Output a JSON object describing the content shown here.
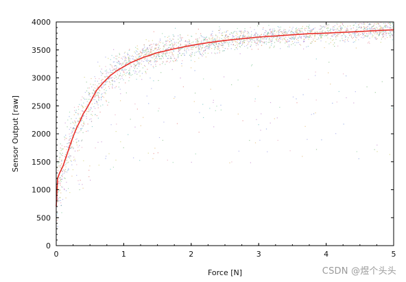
{
  "chart_data": {
    "type": "scatter",
    "title": "",
    "xlabel": "Force [N]",
    "ylabel": "Sensor Output [raw]",
    "xlim": [
      0,
      5
    ],
    "ylim": [
      0,
      4000
    ],
    "xticks": [
      "0",
      "1",
      "2",
      "3",
      "4",
      "5"
    ],
    "yticks": [
      "0",
      "500",
      "1000",
      "1500",
      "2000",
      "2500",
      "3000",
      "3500",
      "4000"
    ],
    "grid": false,
    "scatter_colors": [
      "#e05a5a",
      "#5aa85a",
      "#5a7ad8",
      "#d8a040",
      "#b060c0",
      "#40b0b0",
      "#c0c040",
      "#e080a0",
      "#8080e0",
      "#60c080"
    ],
    "series": [
      {
        "kind": "line",
        "color": "#e8302a",
        "x": [
          0.0,
          0.02,
          0.05,
          0.1,
          0.15,
          0.2,
          0.25,
          0.3,
          0.35,
          0.4,
          0.45,
          0.5,
          0.6,
          0.7,
          0.8,
          0.9,
          1.0,
          1.1,
          1.2,
          1.3,
          1.4,
          1.5,
          1.75,
          2.0,
          2.25,
          2.5,
          2.75,
          3.0,
          3.25,
          3.5,
          3.75,
          4.0,
          4.25,
          4.5,
          4.75,
          5.0
        ],
        "y": [
          700,
          1200,
          1300,
          1420,
          1600,
          1780,
          1950,
          2100,
          2220,
          2360,
          2450,
          2560,
          2780,
          2920,
          3040,
          3130,
          3200,
          3270,
          3320,
          3370,
          3410,
          3450,
          3520,
          3580,
          3630,
          3670,
          3700,
          3730,
          3750,
          3770,
          3790,
          3800,
          3815,
          3830,
          3845,
          3860
        ]
      }
    ]
  },
  "watermark": "CSDN @煜个头头"
}
